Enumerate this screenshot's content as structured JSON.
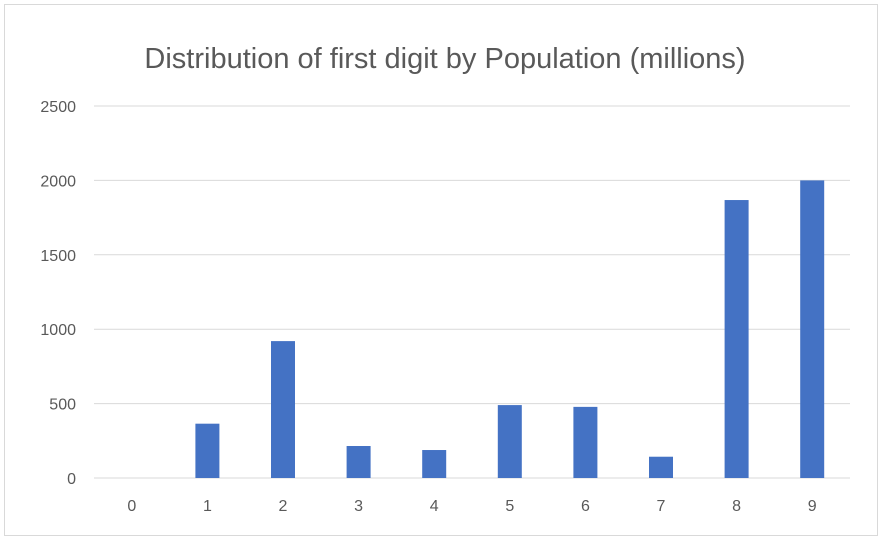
{
  "chart_data": {
    "type": "bar",
    "title": "Distribution of first digit by Population (millions)",
    "xlabel": "",
    "ylabel": "",
    "categories": [
      "0",
      "1",
      "2",
      "3",
      "4",
      "5",
      "6",
      "7",
      "8",
      "9"
    ],
    "values": [
      0,
      365,
      920,
      215,
      188,
      490,
      478,
      143,
      1868,
      2000
    ],
    "ylim": [
      0,
      2500
    ],
    "yticks": [
      0,
      500,
      1000,
      1500,
      2000,
      2500
    ],
    "grid": true,
    "legend": "none",
    "bar_color": "#4472C4"
  }
}
